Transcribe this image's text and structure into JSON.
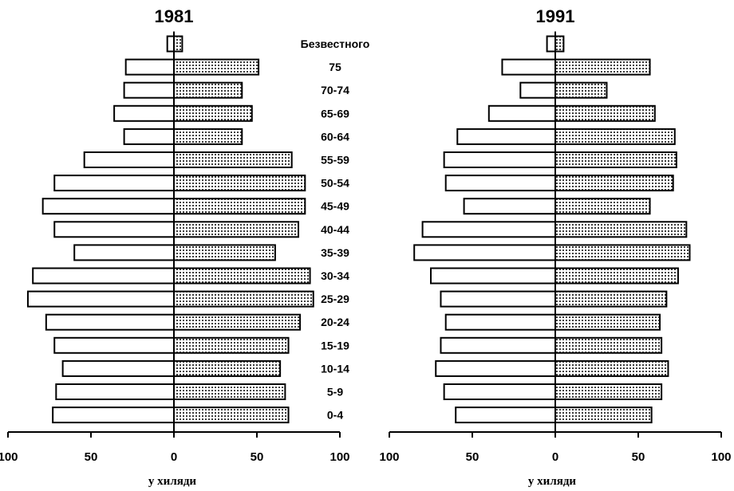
{
  "chart_data": [
    {
      "type": "bar",
      "title": "1981",
      "categories": [
        "Безвестного",
        "75",
        "70-74",
        "65-69",
        "60-64",
        "55-59",
        "50-54",
        "45-49",
        "40-44",
        "35-39",
        "30-34",
        "25-29",
        "20-24",
        "15-19",
        "10-14",
        "5-9",
        "0-4"
      ],
      "series": [
        {
          "values": [
            4,
            29,
            30,
            36,
            30,
            54,
            72,
            79,
            72,
            60,
            85,
            88,
            77,
            72,
            67,
            71,
            73
          ]
        },
        {
          "values": [
            5,
            51,
            41,
            47,
            41,
            71,
            79,
            79,
            75,
            61,
            82,
            84,
            76,
            69,
            64,
            67,
            69
          ]
        }
      ],
      "xlabel": "у хиляди",
      "xticks": [
        "100",
        "50",
        "0",
        "50",
        "100"
      ],
      "xlim": [
        -100,
        100
      ]
    },
    {
      "type": "bar",
      "title": "1991",
      "categories": [
        "Безвестного",
        "75",
        "70-74",
        "65-69",
        "60-64",
        "55-59",
        "50-54",
        "45-49",
        "40-44",
        "35-39",
        "30-34",
        "25-29",
        "20-24",
        "15-19",
        "10-14",
        "5-9",
        "0-4"
      ],
      "series": [
        {
          "values": [
            5,
            32,
            21,
            40,
            59,
            67,
            66,
            55,
            80,
            85,
            75,
            69,
            66,
            69,
            72,
            67,
            60
          ]
        },
        {
          "values": [
            5,
            57,
            31,
            60,
            72,
            73,
            71,
            57,
            79,
            81,
            74,
            67,
            63,
            64,
            68,
            64,
            58
          ]
        }
      ],
      "xlabel": "у хиляди",
      "xticks": [
        "100",
        "50",
        "0",
        "50",
        "100"
      ],
      "xlim": [
        -100,
        100
      ]
    }
  ]
}
